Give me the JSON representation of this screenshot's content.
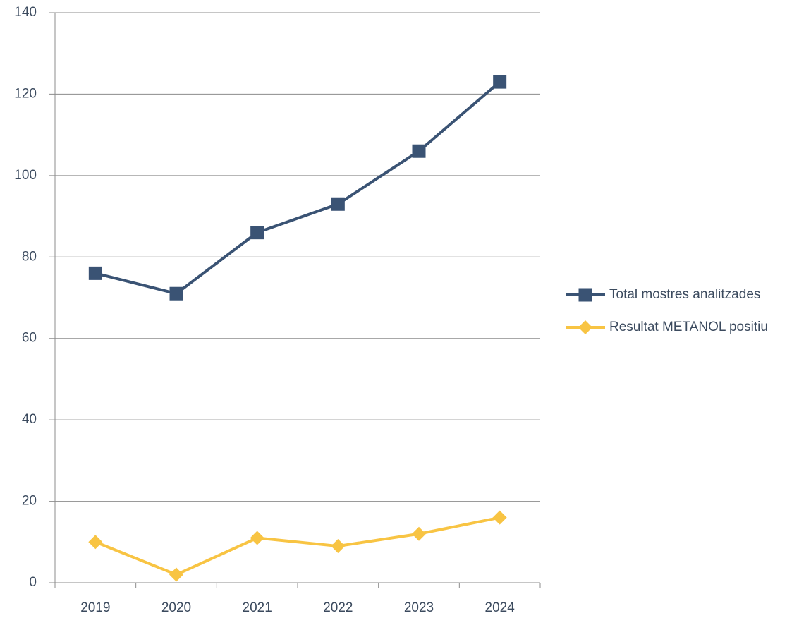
{
  "chart_data": {
    "type": "line",
    "categories": [
      "2019",
      "2020",
      "2021",
      "2022",
      "2023",
      "2024"
    ],
    "series": [
      {
        "name": "Total mostres analitzades",
        "color": "#3a5374",
        "marker": "square",
        "values": [
          76,
          71,
          86,
          93,
          106,
          123
        ]
      },
      {
        "name": "Resultat METANOL positiu",
        "color": "#f8c443",
        "marker": "diamond",
        "values": [
          10,
          2,
          11,
          9,
          12,
          16
        ]
      }
    ],
    "ylim": [
      0,
      140
    ],
    "yticks": [
      0,
      20,
      40,
      60,
      80,
      100,
      120,
      140
    ],
    "grid": true,
    "legend": "right"
  }
}
